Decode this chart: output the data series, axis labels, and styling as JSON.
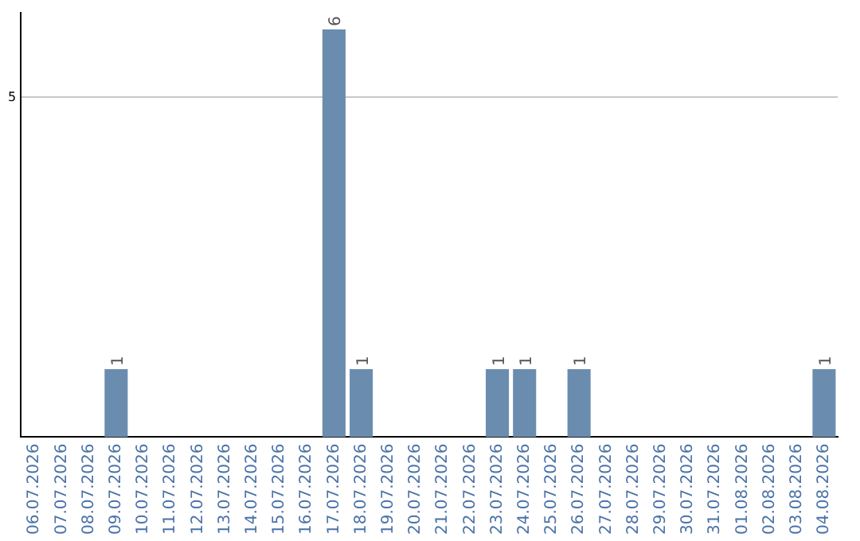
{
  "chart_data": {
    "type": "bar",
    "categories": [
      "06.07.2026",
      "07.07.2026",
      "08.07.2026",
      "09.07.2026",
      "10.07.2026",
      "11.07.2026",
      "12.07.2026",
      "13.07.2026",
      "14.07.2026",
      "15.07.2026",
      "16.07.2026",
      "17.07.2026",
      "18.07.2026",
      "19.07.2026",
      "20.07.2026",
      "21.07.2026",
      "22.07.2026",
      "23.07.2026",
      "24.07.2026",
      "25.07.2026",
      "26.07.2026",
      "27.07.2026",
      "28.07.2026",
      "29.07.2026",
      "30.07.2026",
      "31.07.2026",
      "01.08.2026",
      "02.08.2026",
      "03.08.2026",
      "04.08.2026"
    ],
    "values": [
      0,
      0,
      0,
      1,
      0,
      0,
      0,
      0,
      0,
      0,
      0,
      6,
      1,
      0,
      0,
      0,
      0,
      1,
      1,
      0,
      1,
      0,
      0,
      0,
      0,
      0,
      0,
      0,
      0,
      1
    ],
    "value_labels": [
      null,
      null,
      null,
      "1",
      null,
      null,
      null,
      null,
      null,
      null,
      null,
      "6",
      "1",
      null,
      null,
      null,
      null,
      "1",
      "1",
      null,
      "1",
      null,
      null,
      null,
      null,
      null,
      null,
      null,
      null,
      "1"
    ],
    "color": "#6a8caf",
    "ylim": [
      0,
      6.25
    ],
    "yticks": [
      5
    ],
    "grid": "y",
    "legend": false
  }
}
